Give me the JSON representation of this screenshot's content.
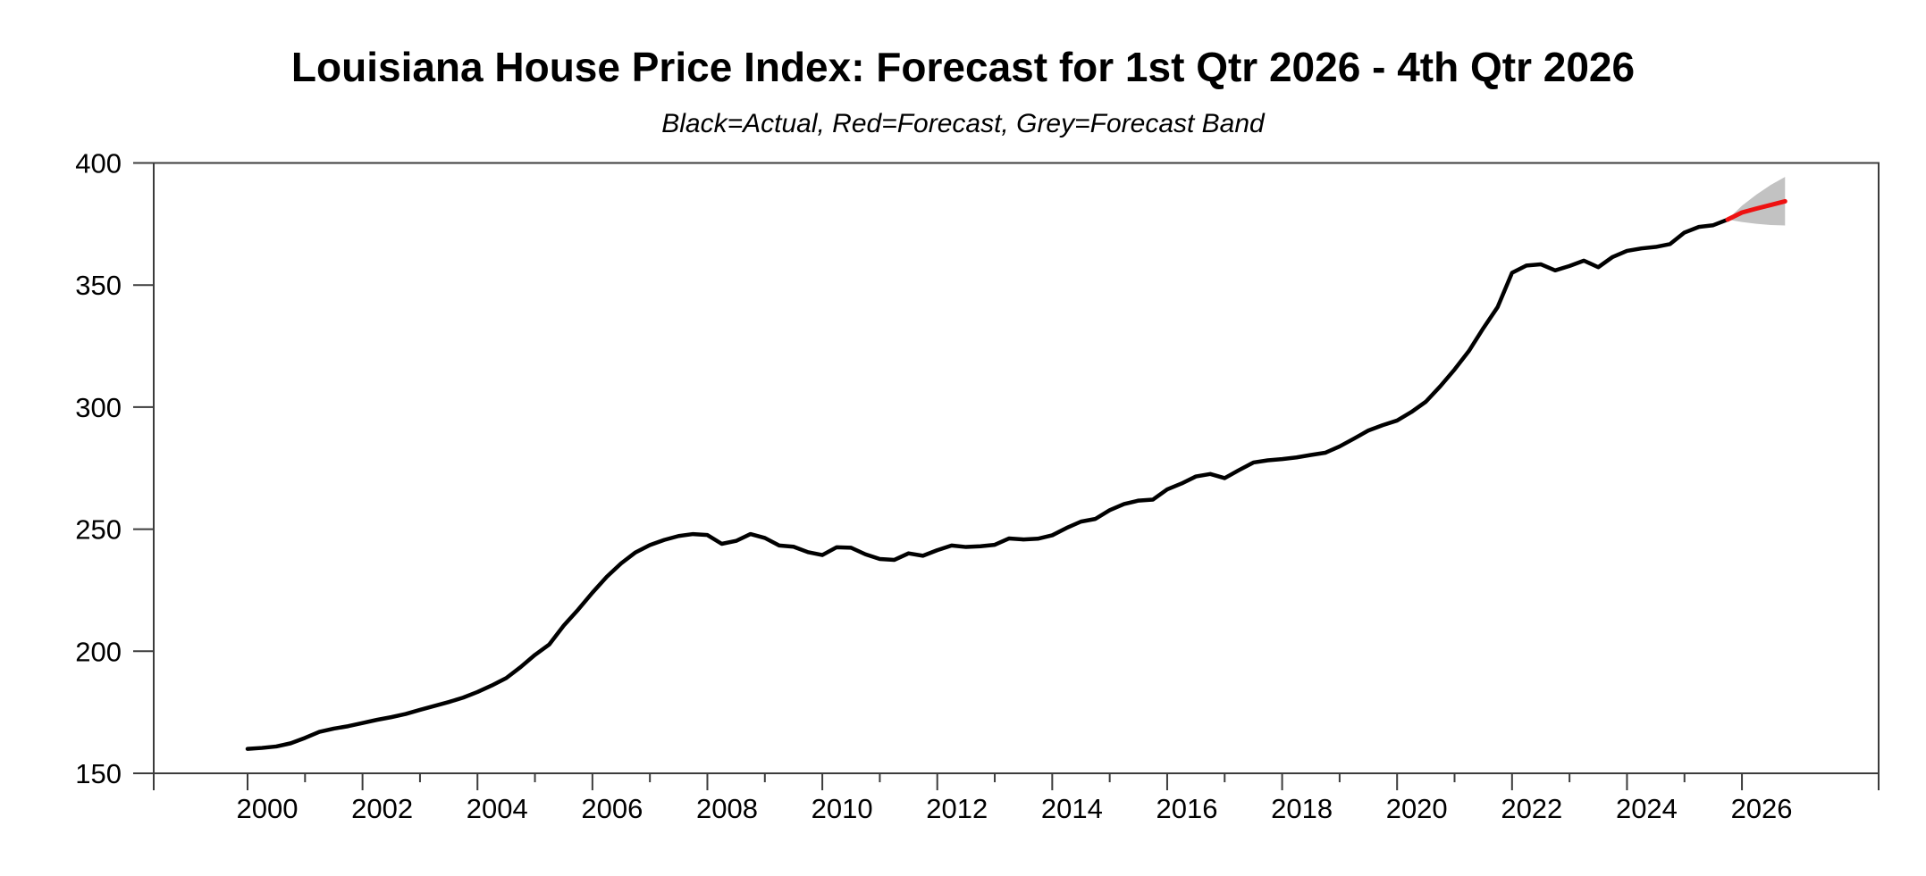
{
  "chart": {
    "title": "Louisiana House Price Index: Forecast for 1st Qtr 2026 - 4th Qtr 2026",
    "subtitle": "Black=Actual, Red=Forecast, Grey=Forecast Band"
  },
  "colors": {
    "actual_line": "#000000",
    "forecast_line": "#ee1111",
    "forecast_band": "#c2c2c2",
    "frame": "#3c3c3c",
    "text": "#000000",
    "background": "#ffffff"
  },
  "chart_data": {
    "type": "line",
    "title": "Louisiana House Price Index: Forecast for 1st Qtr 2026 - 4th Qtr 2026",
    "subtitle": "Black=Actual, Red=Forecast, Grey=Forecast Band",
    "xlabel": "",
    "ylabel": "",
    "grid": false,
    "legend_position": "none (encoded in subtitle)",
    "ylim": [
      150,
      400
    ],
    "xlim_years": [
      1998.4,
      2028.4
    ],
    "y_tick_labels": [
      "150",
      "200",
      "250",
      "300",
      "350",
      "400"
    ],
    "y_ticks": [
      150,
      200,
      250,
      300,
      350,
      400
    ],
    "x_tick_labels": [
      "2000",
      "2002",
      "2004",
      "2006",
      "2008",
      "2010",
      "2012",
      "2014",
      "2016",
      "2018",
      "2020",
      "2022",
      "2024",
      "2026"
    ],
    "x_major_ticks": [
      2000,
      2002,
      2004,
      2006,
      2008,
      2010,
      2012,
      2014,
      2016,
      2018,
      2020,
      2022,
      2024,
      2026
    ],
    "x_minor_ticks": [
      2001,
      2003,
      2005,
      2007,
      2009,
      2011,
      2013,
      2015,
      2017,
      2019,
      2021,
      2023,
      2025
    ],
    "series": [
      {
        "name": "Actual",
        "legend_label": "Black=Actual",
        "color": "#000000",
        "frequency": "quarterly",
        "start_year": 2000,
        "end_label": "2025 Q4",
        "values": [
          160.0,
          160.4,
          161.0,
          162.3,
          164.5,
          167.0,
          168.3,
          169.3,
          170.6,
          171.9,
          173.0,
          174.3,
          176.0,
          177.6,
          179.2,
          181.0,
          183.3,
          186.0,
          189.0,
          193.5,
          198.5,
          202.8,
          210.5,
          217.0,
          224.0,
          230.5,
          236.0,
          240.5,
          243.5,
          245.6,
          247.2,
          248.0,
          247.6,
          244.0,
          245.2,
          248.0,
          246.4,
          243.3,
          242.8,
          240.6,
          239.4,
          242.6,
          242.4,
          239.7,
          237.8,
          237.4,
          240.1,
          239.1,
          241.4,
          243.3,
          242.7,
          243.0,
          243.6,
          246.2,
          245.8,
          246.1,
          247.5,
          250.5,
          253.1,
          254.2,
          257.8,
          260.3,
          261.7,
          262.1,
          266.3,
          268.7,
          271.6,
          272.6,
          270.9,
          274.2,
          277.3,
          278.2,
          278.7,
          279.4,
          280.4,
          281.3,
          283.9,
          287.1,
          290.4,
          292.6,
          294.5,
          298.0,
          302.2,
          308.5,
          315.4,
          323.0,
          332.3,
          341.0,
          355.0,
          358.0,
          358.5,
          356.0,
          357.8,
          360.0,
          357.3,
          361.5,
          364.0,
          365.0,
          365.6,
          366.8,
          371.5,
          373.8,
          374.5,
          376.8
        ]
      },
      {
        "name": "Forecast",
        "legend_label": "Red=Forecast",
        "color": "#ee1111",
        "x": [
          2025.75,
          2026.0,
          2026.25,
          2026.5,
          2026.75
        ],
        "quarters": [
          "2025Q4",
          "2026Q1",
          "2026Q2",
          "2026Q3",
          "2026Q4"
        ],
        "values": [
          376.8,
          379.7,
          381.3,
          382.8,
          384.3
        ]
      },
      {
        "name": "Forecast Band",
        "legend_label": "Grey=Forecast Band",
        "color": "#c2c2c2",
        "x": [
          2025.75,
          2026.0,
          2026.25,
          2026.5,
          2026.75
        ],
        "upper": [
          376.8,
          382.5,
          387.0,
          391.0,
          394.3
        ],
        "lower": [
          376.8,
          375.8,
          375.1,
          374.6,
          374.4
        ]
      }
    ]
  }
}
